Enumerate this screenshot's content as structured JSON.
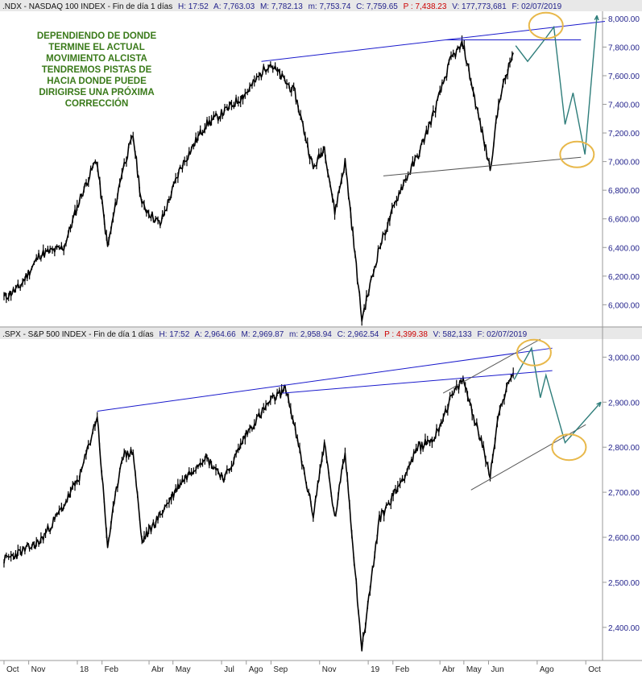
{
  "colors": {
    "background": "#ffffff",
    "header_bg": "#e8e8e8",
    "price": "#000000",
    "trendline_blue": "#1a1acc",
    "trendline_gray": "#555555",
    "projection": "#2e7d7a",
    "circle": "#e8b84a",
    "annotation": "#3a7a1a",
    "axis_text": "#1f1f8a",
    "header_red": "#cc0000"
  },
  "annotation_lines": [
    "DEPENDIENDO DE DONDE",
    "TERMINE EL ACTUAL",
    "MOVIMIENTO ALCISTA",
    "TENDREMOS PISTAS DE",
    "HACIA DONDE PUEDE",
    "DIRIGIRSE UNA PRÓXIMA",
    "CORRECCIÓN"
  ],
  "chart_data": [
    {
      "type": "line",
      "header": {
        "prefix": ".NDX - NASDAQ 100 INDEX - Fin de día 1 días",
        "H": "H: 17:52",
        "A": "A: 7,763.03",
        "M": "M: 7,782.13",
        "m": "m: 7,753.74",
        "C": "C: 7,759.65",
        "P": "P : 7,438.23",
        "V": "V: 177,773,681",
        "F": "F: 02/07/2019"
      },
      "ylim": [
        5850,
        8050
      ],
      "yticks": [
        "6,000.00",
        "6,200.00",
        "6,400.00",
        "6,600.00",
        "6,800.00",
        "7,000.00",
        "7,200.00",
        "7,400.00",
        "7,600.00",
        "7,800.00",
        "8,000.00"
      ],
      "ytick_values": [
        6000,
        6200,
        6400,
        6600,
        6800,
        7000,
        7200,
        7400,
        7600,
        7800,
        8000
      ],
      "x": [
        "2017-10-01",
        "2017-10-20",
        "2017-11-15",
        "2017-12-15",
        "2018-01-05",
        "2018-01-25",
        "2018-02-08",
        "2018-02-26",
        "2018-03-12",
        "2018-03-23",
        "2018-04-15",
        "2018-05-10",
        "2018-06-10",
        "2018-07-05",
        "2018-08-01",
        "2018-08-30",
        "2018-10-01",
        "2018-10-24",
        "2018-11-07",
        "2018-11-20",
        "2018-12-03",
        "2018-12-24",
        "2019-01-15",
        "2019-02-10",
        "2019-03-05",
        "2019-03-25",
        "2019-04-15",
        "2019-04-30",
        "2019-05-20",
        "2019-06-03",
        "2019-06-15",
        "2019-07-02"
      ],
      "series": [
        {
          "values": [
            6050,
            6120,
            6350,
            6400,
            6750,
            7020,
            6400,
            6930,
            7180,
            6700,
            6560,
            6950,
            7250,
            7350,
            7480,
            7690,
            7480,
            6950,
            7100,
            6650,
            7000,
            5900,
            6400,
            6800,
            7050,
            7350,
            7720,
            7820,
            7300,
            6950,
            7450,
            7760
          ]
        }
      ],
      "trendlines": [
        {
          "kind": "resistance",
          "points": [
            [
              "2018-08-20",
              7700
            ],
            [
              "2019-10-25",
              7980
            ]
          ]
        },
        {
          "kind": "resistance-flat",
          "points": [
            [
              "2019-04-08",
              7850
            ],
            [
              "2019-09-25",
              7850
            ]
          ]
        },
        {
          "kind": "support",
          "points": [
            [
              "2019-01-20",
              6900
            ],
            [
              "2019-09-25",
              7030
            ]
          ]
        }
      ],
      "projection": [
        [
          "2019-07-05",
          7810
        ],
        [
          "2019-07-20",
          7700
        ],
        [
          "2019-08-10",
          7850
        ],
        [
          "2019-08-22",
          7940
        ],
        [
          "2019-09-05",
          7260
        ],
        [
          "2019-09-15",
          7480
        ],
        [
          "2019-09-30",
          7050
        ],
        [
          "2019-10-15",
          8020
        ]
      ],
      "circles": [
        [
          "2019-08-12",
          7950
        ],
        [
          "2019-09-20",
          7050
        ]
      ]
    },
    {
      "type": "line",
      "header": {
        "prefix": ".SPX - S&P 500 INDEX - Fin de día 1 días",
        "H": "H: 17:52",
        "A": "A: 2,964.66",
        "M": "M: 2,969.87",
        "m": "m: 2,958.94",
        "C": "C: 2,962.54",
        "P": "P : 4,399.38",
        "V": "V: 582,133",
        "F": "F: 02/07/2019"
      },
      "ylim": [
        2330,
        3040
      ],
      "yticks": [
        "2,400.00",
        "2,500.00",
        "2,600.00",
        "2,700.00",
        "2,800.00",
        "2,900.00",
        "3,000.00"
      ],
      "ytick_values": [
        2400,
        2500,
        2600,
        2700,
        2800,
        2900,
        3000
      ],
      "x": [
        "2017-10-01",
        "2017-10-20",
        "2017-11-15",
        "2017-12-15",
        "2018-01-05",
        "2018-01-26",
        "2018-02-08",
        "2018-02-26",
        "2018-03-12",
        "2018-03-23",
        "2018-04-15",
        "2018-05-10",
        "2018-06-10",
        "2018-07-05",
        "2018-08-01",
        "2018-08-30",
        "2018-09-20",
        "2018-10-24",
        "2018-11-07",
        "2018-11-20",
        "2018-12-03",
        "2018-12-24",
        "2019-01-15",
        "2019-02-10",
        "2019-03-05",
        "2019-03-25",
        "2019-04-15",
        "2019-04-30",
        "2019-05-20",
        "2019-06-03",
        "2019-06-15",
        "2019-07-02"
      ],
      "series": [
        {
          "values": [
            2550,
            2565,
            2590,
            2670,
            2740,
            2870,
            2580,
            2780,
            2790,
            2590,
            2650,
            2720,
            2780,
            2730,
            2830,
            2900,
            2930,
            2650,
            2810,
            2640,
            2790,
            2350,
            2640,
            2720,
            2800,
            2820,
            2910,
            2950,
            2830,
            2740,
            2890,
            2965
          ]
        }
      ],
      "trendlines": [
        {
          "kind": "resistance",
          "points": [
            [
              "2018-01-26",
              2880
            ],
            [
              "2019-08-20",
              3020
            ]
          ]
        },
        {
          "kind": "resistance-flat",
          "points": [
            [
              "2018-09-15",
              2920
            ],
            [
              "2019-08-20",
              2970
            ]
          ]
        },
        {
          "kind": "channel-upper",
          "points": [
            [
              "2019-04-05",
              2920
            ],
            [
              "2019-08-05",
              3040
            ]
          ]
        },
        {
          "kind": "support",
          "points": [
            [
              "2019-05-10",
              2705
            ],
            [
              "2019-10-01",
              2850
            ]
          ]
        }
      ],
      "projection": [
        [
          "2019-07-03",
          2950
        ],
        [
          "2019-07-25",
          3020
        ],
        [
          "2019-08-05",
          2910
        ],
        [
          "2019-08-12",
          2960
        ],
        [
          "2019-09-05",
          2810
        ],
        [
          "2019-10-20",
          2900
        ]
      ],
      "circles": [
        [
          "2019-07-28",
          3010
        ],
        [
          "2019-09-10",
          2800
        ]
      ]
    }
  ],
  "x_axis": {
    "labels": [
      "Oct",
      "Nov",
      "18",
      "Feb",
      "Abr",
      "May",
      "Jul",
      "Ago",
      "Sep",
      "Nov",
      "19",
      "Feb",
      "Abr",
      "May",
      "Jun",
      "Ago",
      "Oct"
    ],
    "dates": [
      "2017-10-01",
      "2017-11-01",
      "2018-01-01",
      "2018-02-01",
      "2018-04-01",
      "2018-05-01",
      "2018-07-01",
      "2018-08-01",
      "2018-09-01",
      "2018-11-01",
      "2019-01-01",
      "2019-02-01",
      "2019-04-01",
      "2019-05-01",
      "2019-06-01",
      "2019-08-01",
      "2019-10-01"
    ]
  }
}
